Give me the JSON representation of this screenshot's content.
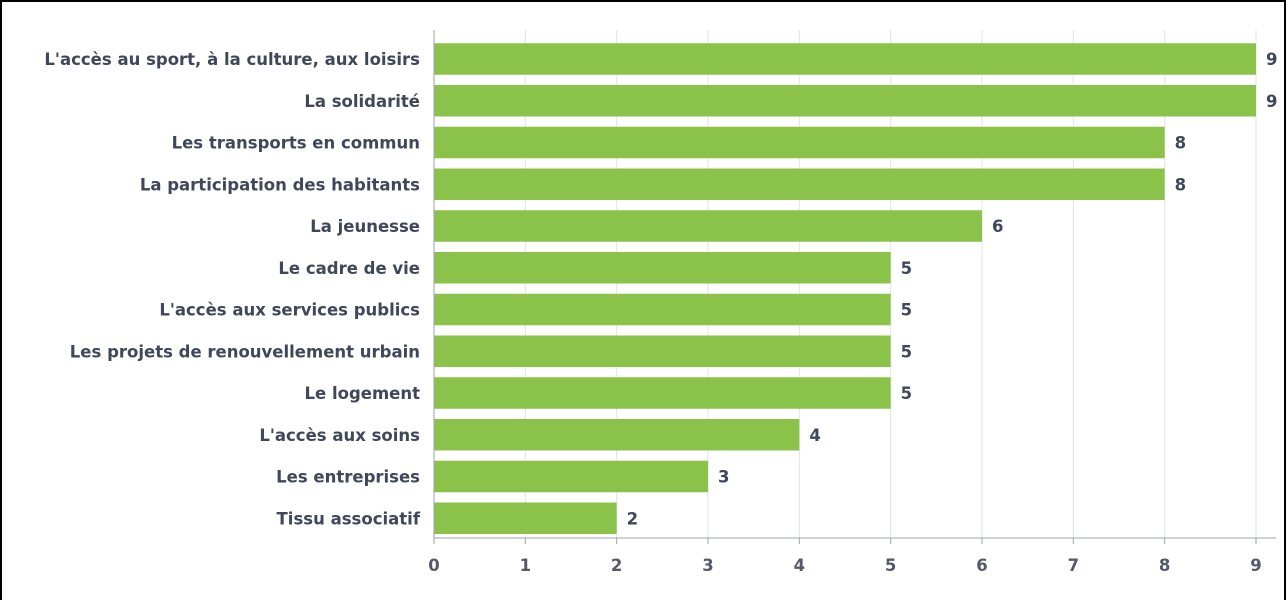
{
  "chart_data": {
    "type": "bar",
    "orientation": "horizontal",
    "categories": [
      "L'accès au sport, à la culture, aux loisirs",
      "La solidarité",
      "Les transports en commun",
      "La participation des habitants",
      "La jeunesse",
      "Le cadre de vie",
      "L'accès aux services publics",
      "Les projets de renouvellement urbain",
      "Le logement",
      "L'accès aux soins",
      "Les entreprises",
      "Tissu associatif"
    ],
    "values": [
      9,
      9,
      8,
      8,
      6,
      5,
      5,
      5,
      5,
      4,
      3,
      2
    ],
    "xlim": [
      0,
      9
    ],
    "x_ticks": [
      "0",
      "1",
      "2",
      "3",
      "4",
      "5",
      "6",
      "7",
      "8",
      "9"
    ],
    "title": "",
    "xlabel": "",
    "ylabel": "",
    "grid": true,
    "colors": {
      "bar": "#8bc34a",
      "grid": "#e3e3e3",
      "text": "#40475a",
      "axis": "#9ea3b0"
    }
  }
}
